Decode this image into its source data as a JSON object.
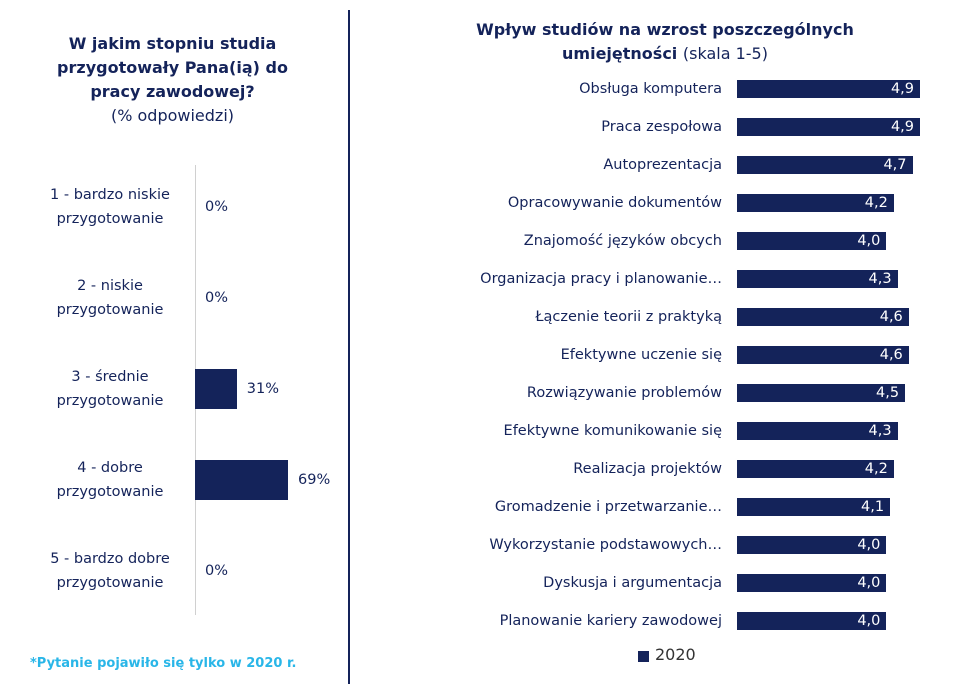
{
  "chart_data": [
    {
      "type": "bar",
      "title": "W jakim stopniu studia przygotowały Pana(ią) do pracy zawodowej?",
      "subtitle": "(% odpowiedzi)",
      "categories": [
        "1 - bardzo niskie przygotowanie",
        "2 - niskie przygotowanie",
        "3 - średnie przygotowanie",
        "4 - dobre przygotowanie",
        "5 - bardzo dobre przygotowanie"
      ],
      "values": [
        0,
        0,
        31,
        69,
        0
      ],
      "value_labels": [
        "0%",
        "0%",
        "31%",
        "69%",
        "0%"
      ],
      "color": "#14235a"
    },
    {
      "type": "bar",
      "title": "Wpływ studiów na wzrost poszczególnych umiejętności",
      "subtitle": "(skala 1-5)",
      "categories": [
        "Obsługa komputera",
        "Praca zespołowa",
        "Autoprezentacja",
        "Opracowywanie dokumentów",
        "Znajomość języków obcych",
        "Organizacja pracy i planowanie…",
        "Łączenie teorii z praktyką",
        "Efektywne uczenie się",
        "Rozwiązywanie problemów",
        "Efektywne komunikowanie się",
        "Realizacja projektów",
        "Gromadzenie i przetwarzanie…",
        "Wykorzystanie podstawowych…",
        "Dyskusja i argumentacja",
        "Planowanie kariery zawodowej"
      ],
      "series": [
        {
          "name": "2020",
          "color": "#14235a",
          "values": [
            4.9,
            4.9,
            4.7,
            4.2,
            4.0,
            4.3,
            4.6,
            4.6,
            4.5,
            4.3,
            4.2,
            4.1,
            4.0,
            4.0,
            4.0
          ],
          "value_labels": [
            "4,9",
            "4,9",
            "4,7",
            "4,2",
            "4,0",
            "4,3",
            "4,6",
            "4,6",
            "4,5",
            "4,3",
            "4,2",
            "4,1",
            "4,0",
            "4,0",
            "4,0"
          ]
        }
      ]
    }
  ],
  "footnote": "*Pytanie pojawiło się tylko w 2020 r."
}
